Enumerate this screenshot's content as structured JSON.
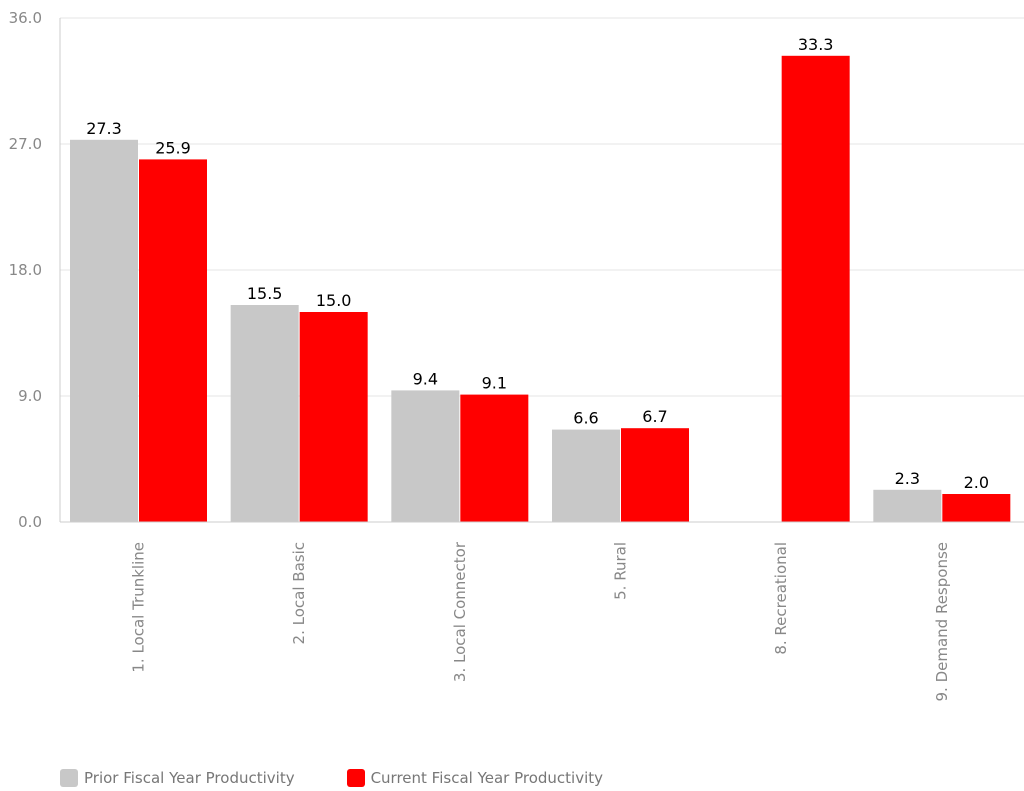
{
  "chart_data": {
    "type": "bar",
    "categories": [
      "1. Local Trunkline",
      "2. Local Basic",
      "3. Local Connector",
      "5. Rural",
      "8. Recreational",
      "9. Demand Response"
    ],
    "series": [
      {
        "name": "Prior Fiscal Year Productivity",
        "color": "#c8c8c8",
        "values": [
          27.3,
          15.5,
          9.4,
          6.6,
          null,
          2.3
        ],
        "labels": [
          "27.3",
          "15.5",
          "9.4",
          "6.6",
          "",
          "2.3"
        ]
      },
      {
        "name": "Current Fiscal Year Productivity",
        "color": "#ff0000",
        "values": [
          25.9,
          15.0,
          9.1,
          6.7,
          33.3,
          2.0
        ],
        "labels": [
          "25.9",
          "15.0",
          "9.1",
          "6.7",
          "33.3",
          "2.0"
        ]
      }
    ],
    "yticks": [
      "0.0",
      "9.0",
      "18.0",
      "27.0",
      "36.0"
    ],
    "ylim": [
      0,
      36
    ],
    "grid": true,
    "legend_position": "bottom-left"
  }
}
